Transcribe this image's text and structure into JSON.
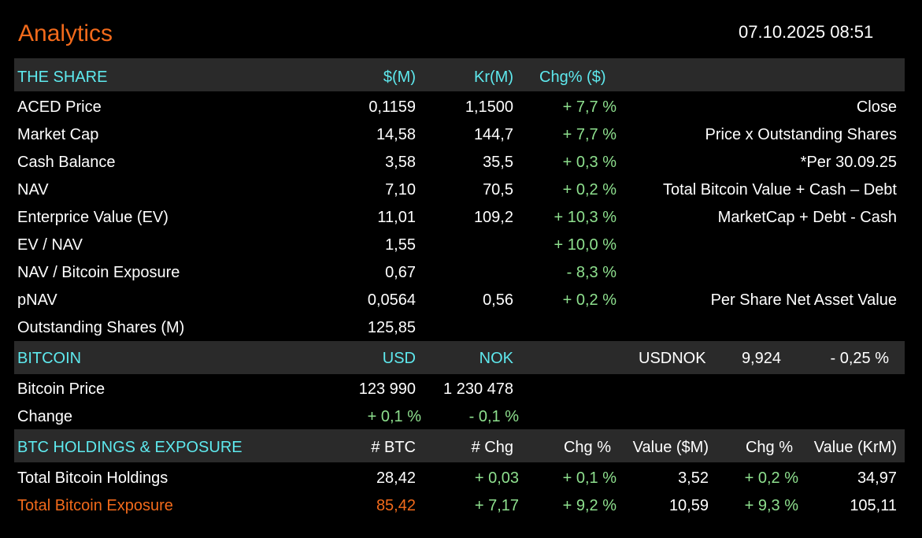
{
  "header": {
    "title": "Analytics",
    "datetime": "07.10.2025 08:51"
  },
  "share": {
    "heading": "THE SHARE",
    "col_usd": "$(M)",
    "col_nok": "Kr(M)",
    "col_chg": "Chg% ($)",
    "rows": [
      {
        "label": "ACED Price",
        "usd": "0,1159",
        "nok": "1,1500",
        "chg": "+ 7,7 %",
        "note": "Close"
      },
      {
        "label": "Market Cap",
        "usd": "14,58",
        "nok": "144,7",
        "chg": "+ 7,7 %",
        "note": "Price x Outstanding Shares"
      },
      {
        "label": "Cash Balance",
        "usd": "3,58",
        "nok": "35,5",
        "chg": "+ 0,3 %",
        "note": "*Per 30.09.25"
      },
      {
        "label": "NAV",
        "usd": "7,10",
        "nok": "70,5",
        "chg": "+ 0,2 %",
        "note": "Total Bitcoin Value + Cash – Debt"
      },
      {
        "label": "Enterprice Value (EV)",
        "usd": "11,01",
        "nok": "109,2",
        "chg": "+ 10,3 %",
        "note": "MarketCap + Debt - Cash"
      },
      {
        "label": "EV / NAV",
        "usd": "1,55",
        "nok": "",
        "chg": "+ 10,0 %",
        "note": ""
      },
      {
        "label": "NAV / Bitcoin Exposure",
        "usd": "0,67",
        "nok": "",
        "chg": "- 8,3 %",
        "note": ""
      },
      {
        "label": "pNAV",
        "usd": "0,0564",
        "nok": "0,56",
        "chg": "+ 0,2 %",
        "note": "Per Share Net Asset Value"
      },
      {
        "label": "Outstanding Shares (M)",
        "usd": "125,85",
        "nok": "",
        "chg": "",
        "note": ""
      }
    ]
  },
  "bitcoin": {
    "heading": "BITCOIN",
    "col_usd": "USD",
    "col_nok": "NOK",
    "fx_label": "USDNOK",
    "fx_value": "9,924",
    "fx_change": "- 0,25 %",
    "price_label": "Bitcoin Price",
    "price_usd": "123 990",
    "price_nok": "1 230 478",
    "change_label": "Change",
    "change_usd": "+ 0,1 %",
    "change_nok": "- 0,1 %"
  },
  "holdings": {
    "heading": "BTC HOLDINGS & EXPOSURE",
    "columns": [
      "# BTC",
      "# Chg",
      "Chg %",
      "Value ($M)",
      "Chg %",
      "Value (KrM)"
    ],
    "rows": [
      {
        "label": "Total Bitcoin Holdings",
        "btc": "28,42",
        "chg": "+ 0,03",
        "chg_pct": "+ 0,1 %",
        "value_usd": "3,52",
        "value_chg": "+ 0,2 %",
        "value_nok": "34,97",
        "highlight": false
      },
      {
        "label": "Total Bitcoin Exposure",
        "btc": "85,42",
        "chg": "+ 7,17",
        "chg_pct": "+ 9,2 %",
        "value_usd": "10,59",
        "value_chg": "+ 9,3 %",
        "value_nok": "105,11",
        "highlight": true
      }
    ]
  },
  "colors": {
    "accent": "#f26a1b",
    "heading": "#5ee9ee",
    "positive": "#8ee08e",
    "band": "#2a2a2a",
    "background": "#000000"
  }
}
